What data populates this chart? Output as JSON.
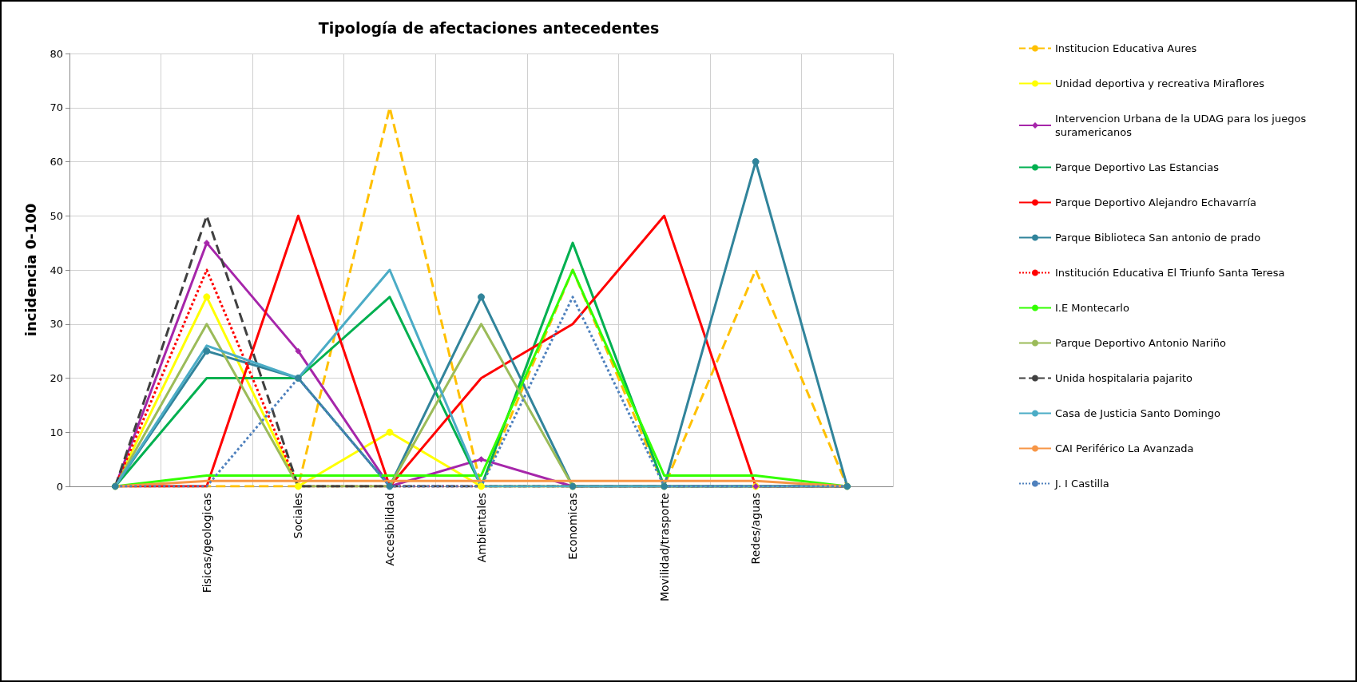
{
  "chart_data": {
    "type": "line",
    "title": "Tipología de afectaciones antecedentes",
    "ylabel": "incidencia 0-100",
    "categories": [
      null,
      "Fisicas/geologicas",
      "Sociales",
      "Accesibilidad",
      "Ambientales",
      "Economicas",
      "Movilidad/trasporte",
      "Redes/aguas",
      null
    ],
    "ylim": [
      0,
      80
    ],
    "yticks": [
      0,
      10,
      20,
      30,
      40,
      50,
      60,
      70,
      80
    ],
    "grid": true,
    "legend": "right",
    "marker": "none",
    "line_style": "solid",
    "series": [
      {
        "name": "Institucion Educativa Aures",
        "color": "#ffc000",
        "line_style": "dashed",
        "values": [
          0,
          0,
          0,
          70,
          0,
          40,
          0,
          40,
          0
        ]
      },
      {
        "name": "Unidad deportiva y recreativa Miraflores",
        "color": "#ffff00",
        "marker": "circle",
        "values": [
          0,
          35,
          0,
          10,
          0,
          0,
          0,
          0,
          0
        ]
      },
      {
        "name": "Intervencion Urbana de la UDAG para los juegos suramericanos",
        "color": "#a626aa",
        "marker": "diamond",
        "values": [
          0,
          45,
          25,
          0,
          5,
          0,
          0,
          0,
          0
        ]
      },
      {
        "name": "Parque Deportivo Las Estancias",
        "color": "#00b050",
        "values": [
          0,
          20,
          20,
          35,
          0,
          45,
          0,
          0,
          0
        ]
      },
      {
        "name": "Parque Deportivo Alejandro Echavarría",
        "color": "#ff0000",
        "values": [
          0,
          0,
          50,
          0,
          20,
          30,
          50,
          0,
          0
        ]
      },
      {
        "name": "Parque Biblioteca San antonio de prado",
        "color": "#31849b",
        "marker": "circle",
        "values": [
          0,
          25,
          20,
          0,
          35,
          0,
          0,
          60,
          0
        ]
      },
      {
        "name": "Institución Educativa El Triunfo Santa Teresa",
        "color": "#ff0000",
        "line_style": "dotted",
        "values": [
          0,
          40,
          0,
          0,
          0,
          0,
          0,
          0,
          0
        ]
      },
      {
        "name": "I.E Montecarlo",
        "color": "#33ff00",
        "values": [
          0,
          2,
          2,
          2,
          2,
          40,
          2,
          2,
          0
        ]
      },
      {
        "name": "Parque Deportivo Antonio Nariño",
        "color": "#9bbb59",
        "values": [
          0,
          30,
          0,
          0,
          30,
          0,
          0,
          0,
          0
        ]
      },
      {
        "name": "Unida hospitalaria pajarito",
        "color": "#404040",
        "line_style": "dashed",
        "values": [
          0,
          50,
          0,
          0,
          0,
          0,
          0,
          0,
          0
        ]
      },
      {
        "name": "Casa de Justicia Santo Domingo",
        "color": "#4bacc6",
        "values": [
          0,
          26,
          20,
          40,
          0,
          0,
          0,
          0,
          0
        ]
      },
      {
        "name": "CAI Periférico La Avanzada",
        "color": "#f79646",
        "values": [
          0,
          1,
          1,
          1,
          1,
          1,
          1,
          1,
          0
        ]
      },
      {
        "name": "J. I Castilla",
        "color": "#4f81bd",
        "line_style": "dotted",
        "values": [
          0,
          0,
          20,
          0,
          0,
          35,
          0,
          0,
          0
        ]
      }
    ]
  }
}
